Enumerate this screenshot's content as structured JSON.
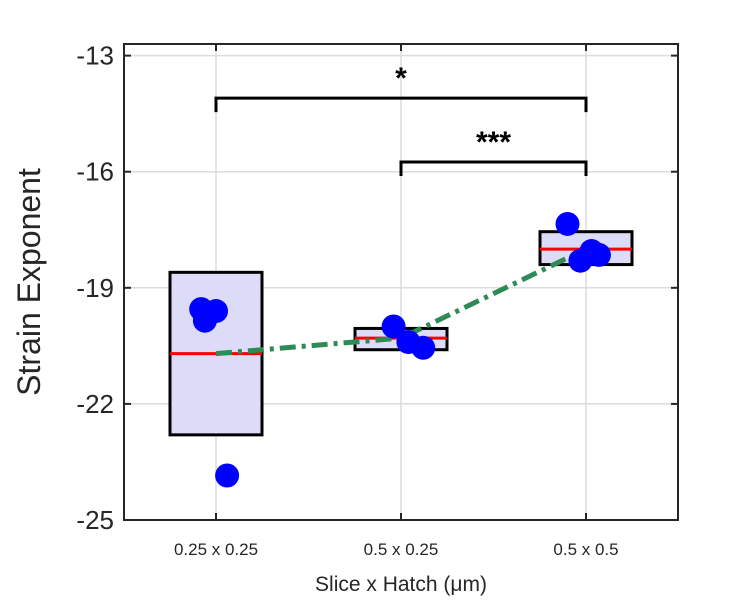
{
  "chart_data": {
    "type": "box",
    "xlabel": "Slice x Hatch (μm)",
    "ylabel": "Strain Exponent",
    "categories": [
      "0.25 x 0.25",
      "0.5 x 0.25",
      "0.5 x 0.5"
    ],
    "ylim": [
      -25,
      -12.7
    ],
    "yticks": [
      -25,
      -22,
      -19,
      -16,
      -13
    ],
    "ytick_labels": [
      "-25",
      "-22",
      "-19",
      "-16",
      "-13"
    ],
    "grid": true,
    "boxes": [
      {
        "category": "0.25 x 0.25",
        "q1": -22.8,
        "q3": -18.6,
        "median": -20.7
      },
      {
        "category": "0.5 x 0.25",
        "q1": -20.6,
        "q3": -20.05,
        "median": -20.3
      },
      {
        "category": "0.5 x 0.5",
        "q1": -18.4,
        "q3": -17.55,
        "median": -18.0
      }
    ],
    "points": [
      {
        "category_index": 0,
        "offset": -0.08,
        "y": -19.55
      },
      {
        "category_index": 0,
        "offset": -0.06,
        "y": -19.85
      },
      {
        "category_index": 0,
        "offset": 0.0,
        "y": -19.6
      },
      {
        "category_index": 0,
        "offset": 0.06,
        "y": -23.85
      },
      {
        "category_index": 1,
        "offset": -0.04,
        "y": -20.0
      },
      {
        "category_index": 1,
        "offset": 0.04,
        "y": -20.4
      },
      {
        "category_index": 1,
        "offset": 0.12,
        "y": -20.55
      },
      {
        "category_index": 2,
        "offset": -0.1,
        "y": -17.35
      },
      {
        "category_index": 2,
        "offset": -0.03,
        "y": -18.3
      },
      {
        "category_index": 2,
        "offset": 0.03,
        "y": -18.05
      },
      {
        "category_index": 2,
        "offset": 0.07,
        "y": -18.15
      }
    ],
    "trend_line": {
      "values": [
        -20.7,
        -20.3,
        -18.0
      ]
    },
    "significance": [
      {
        "from": 0,
        "to": 2,
        "y": -14.1,
        "label": "*"
      },
      {
        "from": 1,
        "to": 2,
        "y": -15.75,
        "label": "***"
      }
    ],
    "colors": {
      "box_fill": "#dcdcf8",
      "median": "#ff0000",
      "points": "#0000ff",
      "trend": "#2e8b57",
      "grid": "#dcdcdc",
      "axis": "#262626"
    }
  }
}
